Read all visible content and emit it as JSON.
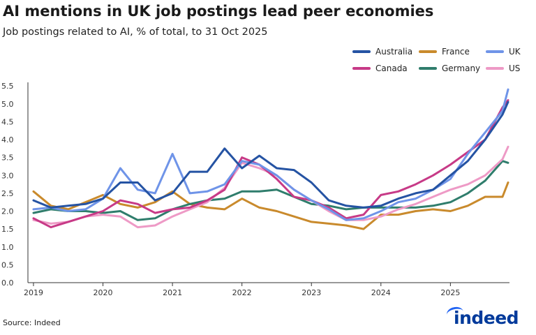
{
  "title": "AI mentions in UK job postings lead peer economies",
  "subtitle": "Job postings related to AI, % of total, to 31 Oct 2025",
  "source": "Source: Indeed",
  "logo_text": "indeed",
  "legend": [
    {
      "label": "Australia",
      "color": "#2553a3"
    },
    {
      "label": "France",
      "color": "#c98a2c"
    },
    {
      "label": "UK",
      "color": "#6f94e8"
    },
    {
      "label": "Canada",
      "color": "#c73a87"
    },
    {
      "label": "Germany",
      "color": "#2f7d6c"
    },
    {
      "label": "US",
      "color": "#ee9ac6"
    }
  ],
  "chart_data": {
    "type": "line",
    "title": "AI mentions in UK job postings lead peer economies",
    "subtitle": "Job postings related to AI, % of total, to 31 Oct 2025",
    "xlabel": "",
    "ylabel": "",
    "xlim": [
      2018.92,
      2025.85
    ],
    "ylim": [
      0,
      5.6
    ],
    "x_ticks": [
      "2019",
      "2020",
      "2021",
      "2022",
      "2023",
      "2024",
      "2025"
    ],
    "y_ticks": [
      "0.0",
      "0.5",
      "1.0",
      "1.5",
      "2.0",
      "2.5",
      "3.0",
      "3.5",
      "4.0",
      "4.5",
      "5.0",
      "5.5"
    ],
    "grid": false,
    "legend_position": "top-right",
    "x": [
      2019.0,
      2019.25,
      2019.5,
      2019.75,
      2020.0,
      2020.25,
      2020.5,
      2020.75,
      2021.0,
      2021.25,
      2021.5,
      2021.75,
      2022.0,
      2022.25,
      2022.5,
      2022.75,
      2023.0,
      2023.25,
      2023.5,
      2023.75,
      2024.0,
      2024.25,
      2024.5,
      2024.75,
      2025.0,
      2025.25,
      2025.5,
      2025.75,
      2025.83
    ],
    "series": [
      {
        "name": "Australia",
        "values": [
          2.3,
          2.1,
          2.15,
          2.2,
          2.35,
          2.8,
          2.8,
          2.3,
          2.5,
          3.1,
          3.1,
          3.75,
          3.2,
          3.55,
          3.2,
          3.15,
          2.8,
          2.3,
          2.15,
          2.1,
          2.15,
          2.35,
          2.5,
          2.6,
          3.0,
          3.4,
          4.0,
          4.7,
          5.05
        ]
      },
      {
        "name": "France",
        "values": [
          2.55,
          2.15,
          2.05,
          2.25,
          2.45,
          2.2,
          2.1,
          2.25,
          2.55,
          2.2,
          2.1,
          2.05,
          2.35,
          2.1,
          2.0,
          1.85,
          1.7,
          1.65,
          1.6,
          1.5,
          1.9,
          1.9,
          2.0,
          2.05,
          2.0,
          2.15,
          2.4,
          2.4,
          2.8
        ]
      },
      {
        "name": "UK",
        "values": [
          2.05,
          2.1,
          2.0,
          2.05,
          2.35,
          3.2,
          2.6,
          2.5,
          3.6,
          2.5,
          2.55,
          2.75,
          3.4,
          3.3,
          3.0,
          2.6,
          2.3,
          2.05,
          1.75,
          1.8,
          2.0,
          2.25,
          2.35,
          2.6,
          2.9,
          3.6,
          4.2,
          4.8,
          5.4
        ]
      },
      {
        "name": "Canada",
        "values": [
          1.8,
          1.55,
          1.7,
          1.85,
          2.0,
          2.3,
          2.2,
          1.95,
          2.05,
          2.1,
          2.3,
          2.6,
          3.5,
          3.3,
          2.9,
          2.4,
          2.3,
          2.1,
          1.8,
          1.9,
          2.45,
          2.55,
          2.75,
          3.0,
          3.3,
          3.65,
          4.0,
          4.9,
          5.1
        ]
      },
      {
        "name": "Germany",
        "values": [
          1.95,
          2.05,
          2.0,
          2.0,
          1.95,
          2.0,
          1.75,
          1.8,
          2.05,
          2.2,
          2.3,
          2.35,
          2.55,
          2.55,
          2.6,
          2.4,
          2.2,
          2.15,
          2.05,
          2.1,
          2.1,
          2.1,
          2.1,
          2.15,
          2.25,
          2.5,
          2.85,
          3.4,
          3.35
        ]
      },
      {
        "name": "US",
        "values": [
          1.75,
          1.65,
          1.7,
          1.85,
          1.9,
          1.85,
          1.55,
          1.6,
          1.85,
          2.05,
          2.25,
          2.65,
          3.35,
          3.2,
          3.0,
          2.6,
          2.3,
          2.0,
          1.75,
          1.75,
          1.85,
          2.05,
          2.2,
          2.4,
          2.6,
          2.75,
          3.0,
          3.45,
          3.8
        ]
      }
    ]
  }
}
